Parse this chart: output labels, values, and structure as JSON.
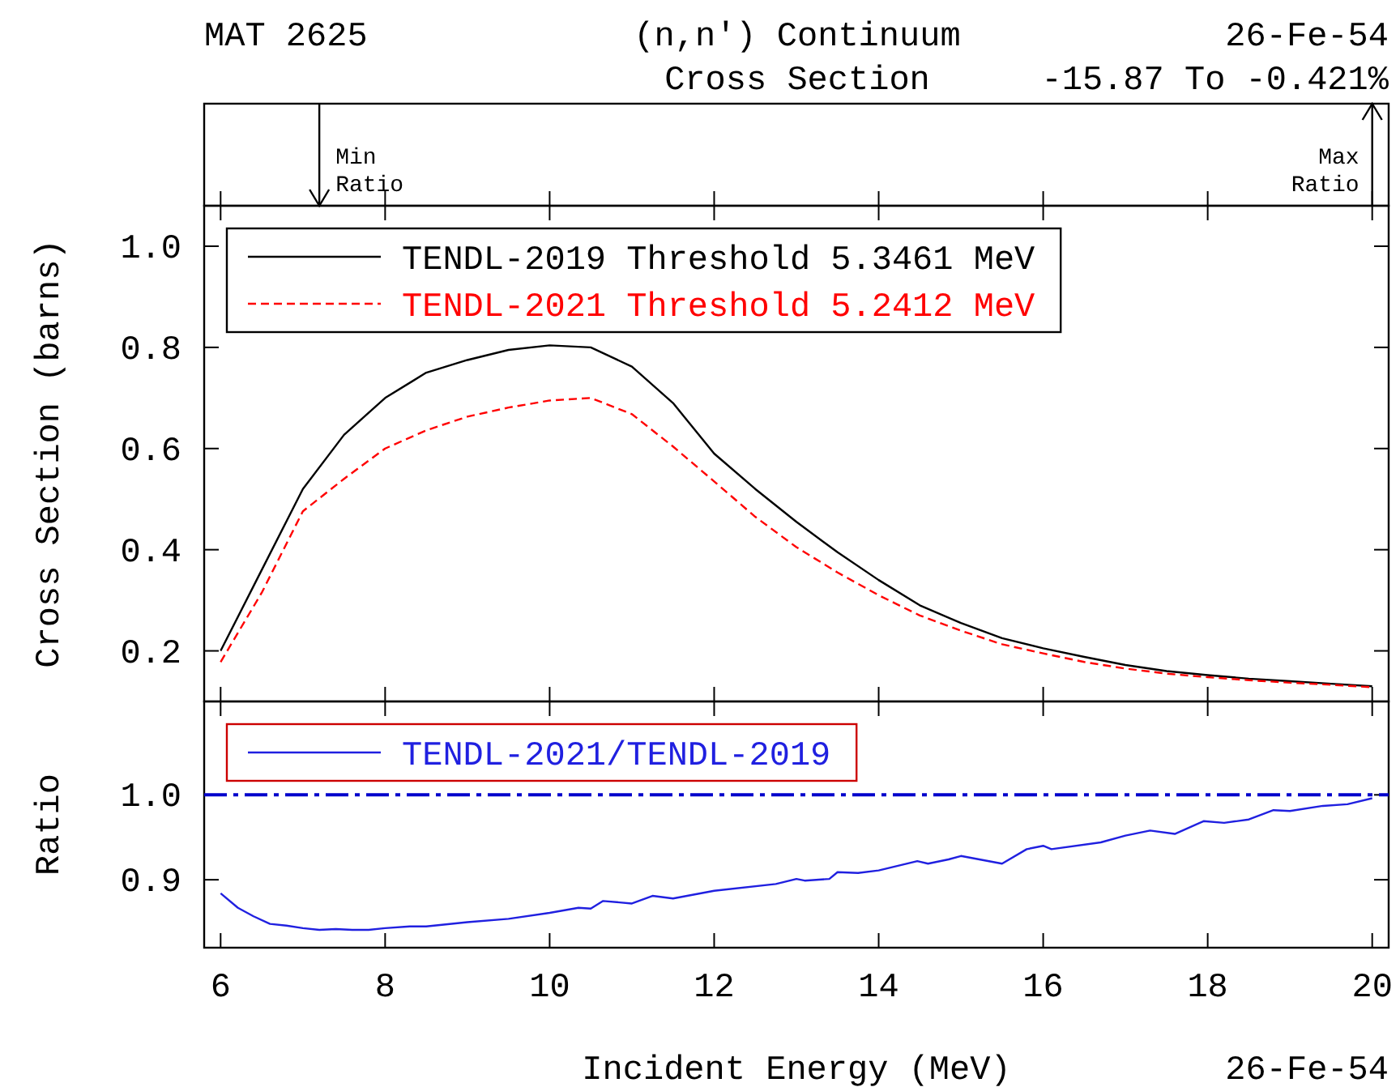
{
  "chart_data": [
    {
      "type": "line",
      "title": "(n,n') Continuum",
      "subtitle": "Cross Section",
      "ylabel": "Cross Section (barns)",
      "annotations": [
        "MAT 2625",
        "26-Fe-54",
        "-15.87 To -0.421%"
      ],
      "xlim": [
        5.8,
        20.2
      ],
      "xticks": [
        6,
        8,
        10,
        12,
        14,
        16,
        18,
        20
      ],
      "tick_labels": "y",
      "ylim": [
        0.1,
        1.08
      ],
      "yticks": [
        0.2,
        0.4,
        0.6,
        0.8,
        {
          "value": 1,
          "label": "1.0"
        }
      ],
      "legend": "top left",
      "x": [
        6,
        6.5,
        7,
        7.5,
        8,
        8.5,
        9,
        9.5,
        10,
        10.5,
        11,
        11.5,
        12,
        12.5,
        13,
        13.5,
        14,
        14.5,
        15,
        15.5,
        16,
        16.5,
        17,
        17.5,
        18,
        18.5,
        19,
        19.5,
        20
      ],
      "series": [
        {
          "name": "TENDL-2019 Threshold 5.3461 MeV",
          "color": "#000000",
          "line_style": "solid",
          "values": [
            0.2,
            0.36,
            0.52,
            0.627,
            0.7,
            0.75,
            0.775,
            0.795,
            0.804,
            0.8,
            0.762,
            0.69,
            0.59,
            0.52,
            0.455,
            0.395,
            0.34,
            0.29,
            0.255,
            0.225,
            0.205,
            0.188,
            0.172,
            0.16,
            0.152,
            0.145,
            0.14,
            0.135,
            0.13
          ]
        },
        {
          "name": "TENDL-2021 Threshold 5.2412 MeV",
          "color": "#ff0000",
          "line_style": "dashed",
          "values": [
            0.178,
            0.315,
            0.476,
            0.54,
            0.6,
            0.636,
            0.663,
            0.681,
            0.695,
            0.7,
            0.668,
            0.604,
            0.535,
            0.465,
            0.405,
            0.355,
            0.31,
            0.27,
            0.24,
            0.213,
            0.195,
            0.178,
            0.165,
            0.155,
            0.148,
            0.142,
            0.137,
            0.133,
            0.128
          ]
        }
      ]
    },
    {
      "type": "line",
      "xlabel": "Incident Energy (MeV)",
      "ylabel": "Ratio",
      "annotations": [
        "Min Ratio",
        "Max Ratio",
        "26-Fe-54"
      ],
      "xlim": [
        5.8,
        20.2
      ],
      "xticks": [
        6,
        8,
        10,
        12,
        14,
        16,
        18,
        20
      ],
      "ylim": [
        0.82,
        1.11
      ],
      "yticks": [
        0.9,
        {
          "value": 1,
          "label": "1.0"
        }
      ],
      "legend": "top left",
      "ref_lines": [
        {
          "axis": "y",
          "value": 1,
          "color": "#0000cc",
          "line_style": "dashed"
        }
      ],
      "series": [
        {
          "name": "TENDL-2021/TENDL-2019",
          "color": "#2020e0",
          "x": [
            6,
            6.21,
            6.4,
            6.6,
            6.8,
            7,
            7.2,
            7.4,
            7.6,
            7.8,
            8,
            8.3,
            8.5,
            9,
            9.5,
            10,
            10.35,
            10.5,
            10.65,
            11,
            11.25,
            11.5,
            12,
            12.75,
            13,
            13.1,
            13.4,
            13.5,
            13.75,
            14,
            14.47,
            14.6,
            14.85,
            15,
            15.5,
            15.8,
            16,
            16.1,
            16.7,
            17,
            17.3,
            17.6,
            17.95,
            18.2,
            18.5,
            18.8,
            19,
            19.4,
            19.7,
            20
          ],
          "values": [
            0.884,
            0.867,
            0.857,
            0.848,
            0.846,
            0.843,
            0.841,
            0.842,
            0.841,
            0.841,
            0.843,
            0.845,
            0.845,
            0.85,
            0.854,
            0.861,
            0.867,
            0.866,
            0.875,
            0.872,
            0.881,
            0.878,
            0.887,
            0.895,
            0.901,
            0.899,
            0.901,
            0.909,
            0.908,
            0.911,
            0.922,
            0.919,
            0.924,
            0.928,
            0.919,
            0.936,
            0.94,
            0.936,
            0.944,
            0.952,
            0.958,
            0.954,
            0.969,
            0.967,
            0.971,
            0.982,
            0.981,
            0.987,
            0.989,
            0.996
          ]
        }
      ]
    }
  ]
}
